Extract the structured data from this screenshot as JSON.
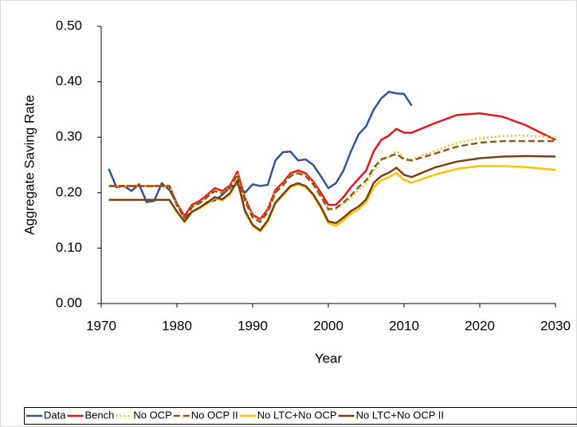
{
  "chart_data": {
    "type": "line",
    "xlabel": "Year",
    "ylabel": "Aggregate Saving Rate",
    "x": [
      1971,
      1972,
      1973,
      1974,
      1975,
      1976,
      1977,
      1978,
      1979,
      1980,
      1981,
      1982,
      1983,
      1984,
      1985,
      1986,
      1987,
      1988,
      1989,
      1990,
      1991,
      1992,
      1993,
      1994,
      1995,
      1996,
      1997,
      1998,
      1999,
      2000,
      2001,
      2002,
      2003,
      2004,
      2005,
      2006,
      2007,
      2008,
      2009,
      2010,
      2011,
      2014,
      2017,
      2020,
      2023,
      2026,
      2030
    ],
    "xlim": [
      1970,
      2030
    ],
    "xticks": [
      1970,
      1980,
      1990,
      2000,
      2010,
      2020,
      2030
    ],
    "ylim": [
      0,
      0.5
    ],
    "yticks": [
      {
        "value": 0,
        "label": "0.00"
      },
      {
        "value": 0.1,
        "label": "0.10"
      },
      {
        "value": 0.2,
        "label": "0.20"
      },
      {
        "value": 0.3,
        "label": "0.30"
      },
      {
        "value": 0.4,
        "label": "0.40"
      },
      {
        "value": 0.5,
        "label": "0.50"
      }
    ],
    "legend": "bottom",
    "series": [
      {
        "name": "Data",
        "color": "#2f5597",
        "style": "solid",
        "values": [
          0.243,
          0.21,
          0.212,
          0.203,
          0.215,
          0.183,
          0.185,
          0.217,
          0.205,
          0.18,
          0.155,
          0.165,
          0.172,
          0.183,
          0.186,
          0.196,
          0.21,
          0.215,
          0.2,
          0.215,
          0.212,
          0.214,
          0.258,
          0.273,
          0.274,
          0.258,
          0.26,
          0.25,
          0.23,
          0.208,
          0.217,
          0.24,
          0.275,
          0.305,
          0.32,
          0.35,
          0.37,
          0.382,
          0.379,
          0.378,
          0.357,
          null,
          null,
          null,
          null,
          null,
          null
        ]
      },
      {
        "name": "Bench",
        "color": "#e8141a",
        "style": "solid",
        "values": [
          0.212,
          0.212,
          0.212,
          0.212,
          0.212,
          0.212,
          0.212,
          0.212,
          0.212,
          0.18,
          0.158,
          0.178,
          0.185,
          0.196,
          0.208,
          0.203,
          0.213,
          0.238,
          0.19,
          0.16,
          0.152,
          0.17,
          0.205,
          0.218,
          0.235,
          0.24,
          0.235,
          0.22,
          0.2,
          0.178,
          0.178,
          0.192,
          0.21,
          0.225,
          0.24,
          0.275,
          0.295,
          0.303,
          0.315,
          0.308,
          0.308,
          0.325,
          0.34,
          0.343,
          0.337,
          0.322,
          0.295
        ]
      },
      {
        "name": "No OCP",
        "color": "#f2c31a",
        "style": "dotted",
        "values": [
          0.212,
          0.212,
          0.212,
          0.212,
          0.212,
          0.212,
          0.212,
          0.212,
          0.212,
          0.178,
          0.155,
          0.175,
          0.182,
          0.193,
          0.205,
          0.2,
          0.21,
          0.235,
          0.187,
          0.157,
          0.149,
          0.167,
          0.202,
          0.215,
          0.232,
          0.237,
          0.232,
          0.217,
          0.195,
          0.168,
          0.17,
          0.18,
          0.19,
          0.205,
          0.215,
          0.24,
          0.258,
          0.265,
          0.275,
          0.262,
          0.26,
          0.275,
          0.29,
          0.298,
          0.302,
          0.303,
          0.3
        ]
      },
      {
        "name": "No OCP II",
        "color": "#8b5a1e",
        "style": "dashed",
        "values": [
          0.212,
          0.212,
          0.212,
          0.212,
          0.212,
          0.212,
          0.212,
          0.212,
          0.212,
          0.177,
          0.154,
          0.174,
          0.181,
          0.192,
          0.203,
          0.198,
          0.208,
          0.232,
          0.185,
          0.155,
          0.147,
          0.165,
          0.2,
          0.213,
          0.23,
          0.235,
          0.23,
          0.215,
          0.193,
          0.17,
          0.172,
          0.182,
          0.195,
          0.21,
          0.222,
          0.245,
          0.26,
          0.265,
          0.27,
          0.26,
          0.258,
          0.27,
          0.283,
          0.29,
          0.293,
          0.293,
          0.293
        ]
      },
      {
        "name": "No LTC+No OCP",
        "color": "#ffc000",
        "style": "solid",
        "values": [
          0.187,
          0.187,
          0.187,
          0.187,
          0.187,
          0.187,
          0.187,
          0.187,
          0.187,
          0.165,
          0.147,
          0.165,
          0.172,
          0.18,
          0.19,
          0.186,
          0.197,
          0.22,
          0.165,
          0.14,
          0.13,
          0.148,
          0.18,
          0.195,
          0.21,
          0.215,
          0.21,
          0.195,
          0.172,
          0.145,
          0.14,
          0.15,
          0.162,
          0.17,
          0.183,
          0.21,
          0.222,
          0.228,
          0.235,
          0.223,
          0.218,
          0.232,
          0.243,
          0.248,
          0.248,
          0.246,
          0.241
        ]
      },
      {
        "name": "No LTC+No OCP II",
        "color": "#7b3f10",
        "style": "solid",
        "values": [
          0.187,
          0.187,
          0.187,
          0.187,
          0.187,
          0.187,
          0.187,
          0.187,
          0.187,
          0.166,
          0.148,
          0.166,
          0.173,
          0.182,
          0.192,
          0.188,
          0.199,
          0.222,
          0.167,
          0.142,
          0.132,
          0.15,
          0.182,
          0.197,
          0.212,
          0.217,
          0.212,
          0.197,
          0.175,
          0.148,
          0.145,
          0.155,
          0.167,
          0.175,
          0.188,
          0.218,
          0.23,
          0.236,
          0.245,
          0.232,
          0.228,
          0.245,
          0.256,
          0.262,
          0.265,
          0.266,
          0.265
        ]
      }
    ]
  }
}
